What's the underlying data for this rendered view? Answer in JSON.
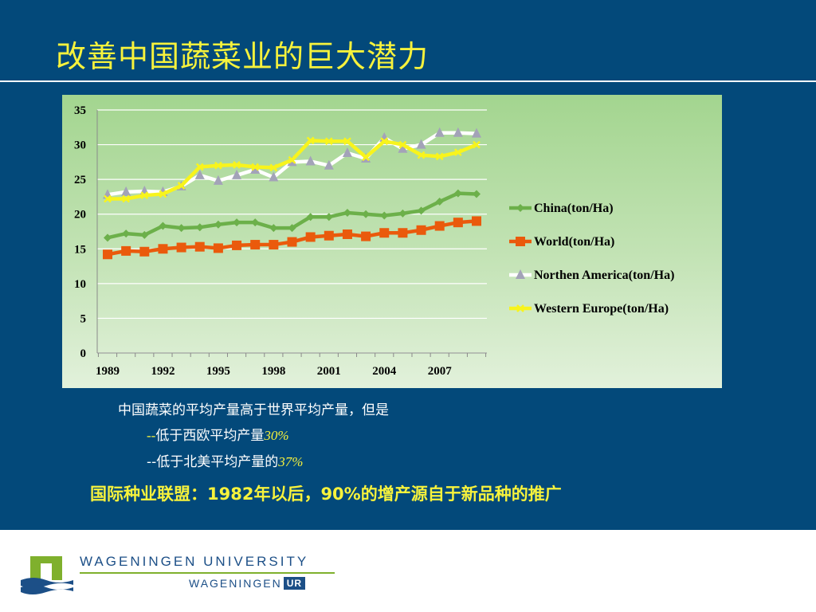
{
  "slide": {
    "title": "改善中国蔬菜业的巨大潜力",
    "notes": {
      "line1": "中国蔬菜的平均产量高于世界平均产量，但是",
      "line2_prefix": "--",
      "line2_text": "低于西欧平均产量",
      "line2_value": "30%",
      "line3_prefix": "--",
      "line3_text": "低于北美平均产量的",
      "line3_value": "37%"
    },
    "bottom_claim": "国际种业联盟：1982年以后，90%的增产源自于新品种的推广"
  },
  "footer": {
    "university": "WAGENINGEN UNIVERSITY",
    "wordmark": "WAGENINGEN",
    "badge": "UR"
  },
  "colors": {
    "slide_bg": "#03497a",
    "title": "#f7f23c",
    "china": "#6cb04a",
    "world": "#ea5a0c",
    "northen_america_line": "#ffffff",
    "northen_america_marker": "#a3a3b8",
    "western_europe": "#f8f41c",
    "logo_green": "#7fb02d",
    "logo_blue": "#1c4f87"
  },
  "chart_data": {
    "type": "line",
    "title": "",
    "xlabel": "",
    "ylabel": "",
    "ylim": [
      0,
      35
    ],
    "yticks": [
      0,
      5,
      10,
      15,
      20,
      25,
      30,
      35
    ],
    "x": [
      1989,
      1990,
      1991,
      1992,
      1993,
      1994,
      1995,
      1996,
      1997,
      1998,
      1999,
      2000,
      2001,
      2002,
      2003,
      2004,
      2005,
      2006,
      2007,
      2008,
      2009
    ],
    "xtick_labels": [
      "1989",
      "1992",
      "1995",
      "1998",
      "2001",
      "2004",
      "2007"
    ],
    "grid": "horizontal",
    "legend_position": "right",
    "series": [
      {
        "name": "China(ton/Ha)",
        "marker": "diamond",
        "values": [
          16.6,
          17.2,
          17.0,
          18.3,
          18.0,
          18.1,
          18.5,
          18.8,
          18.8,
          18.0,
          18.0,
          19.6,
          19.6,
          20.2,
          20.0,
          19.8,
          20.1,
          20.5,
          21.8,
          23.0,
          22.9
        ]
      },
      {
        "name": "World(ton/Ha)",
        "marker": "square",
        "values": [
          14.2,
          14.7,
          14.6,
          15.0,
          15.2,
          15.3,
          15.1,
          15.5,
          15.6,
          15.6,
          16.0,
          16.7,
          16.9,
          17.1,
          16.8,
          17.3,
          17.3,
          17.7,
          18.3,
          18.8,
          19.0
        ]
      },
      {
        "name": "Northen America(ton/Ha)",
        "marker": "triangle",
        "values": [
          22.8,
          23.2,
          23.3,
          23.2,
          24.0,
          25.6,
          24.8,
          25.6,
          26.4,
          25.3,
          27.5,
          27.6,
          27.0,
          28.8,
          28.0,
          31.0,
          29.4,
          30.0,
          31.7,
          31.7,
          31.6
        ]
      },
      {
        "name": "Western Europe(ton/Ha)",
        "marker": "x",
        "values": [
          22.2,
          22.2,
          22.7,
          22.9,
          24.1,
          26.8,
          27.0,
          27.1,
          26.8,
          26.7,
          27.8,
          30.6,
          30.5,
          30.5,
          28.2,
          30.5,
          30.0,
          28.5,
          28.3,
          28.9,
          30.0
        ]
      }
    ]
  }
}
